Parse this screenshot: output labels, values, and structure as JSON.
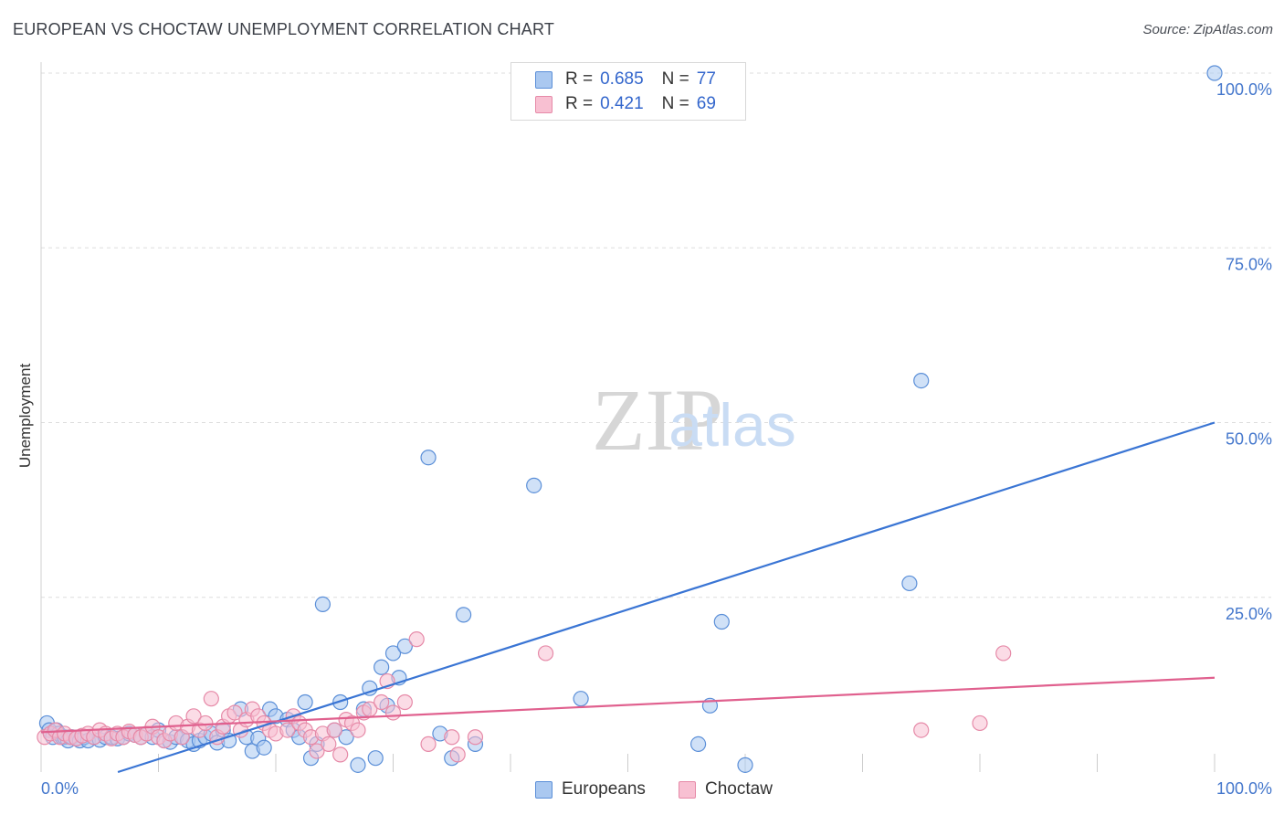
{
  "title": "EUROPEAN VS CHOCTAW UNEMPLOYMENT CORRELATION CHART",
  "source": "Source: ZipAtlas.com",
  "watermark": {
    "zip": "ZIP",
    "atlas": "atlas"
  },
  "legend": {
    "r_label": "R =",
    "n_label": "N =",
    "items": [
      {
        "name": "Europeans",
        "r": "0.685",
        "n": "77",
        "fill": "#aac8f0",
        "stroke": "#5b8fd8"
      },
      {
        "name": "Choctaw",
        "r": "0.421",
        "n": "69",
        "fill": "#f8c0d2",
        "stroke": "#e68aa8"
      }
    ]
  },
  "chart_data": {
    "type": "scatter",
    "title": "EUROPEAN VS CHOCTAW UNEMPLOYMENT CORRELATION CHART",
    "xlabel": "",
    "ylabel": "Unemployment",
    "xlim": [
      0,
      100
    ],
    "ylim": [
      0,
      100
    ],
    "x_ticks": [
      "0.0%",
      "100.0%"
    ],
    "y_ticks": [
      {
        "value": 25,
        "label": "25.0%"
      },
      {
        "value": 50,
        "label": "50.0%"
      },
      {
        "value": 75,
        "label": "75.0%"
      },
      {
        "value": 100,
        "label": "100.0%"
      }
    ],
    "series": [
      {
        "name": "Europeans",
        "color": "#3a75d4",
        "point_fill": "#aac8f0",
        "point_stroke": "#5b8fd8",
        "r": 0.685,
        "n": 77,
        "trend": {
          "x": [
            0,
            100
          ],
          "y": [
            -3.5,
            50
          ]
        },
        "points": [
          [
            0.5,
            7
          ],
          [
            0.7,
            6
          ],
          [
            1,
            5
          ],
          [
            1.3,
            6
          ],
          [
            1.5,
            5.5
          ],
          [
            1.8,
            5
          ],
          [
            2,
            5
          ],
          [
            2.3,
            4.5
          ],
          [
            2.6,
            5
          ],
          [
            3,
            4.8
          ],
          [
            3.3,
            4.5
          ],
          [
            3.7,
            5
          ],
          [
            4,
            4.5
          ],
          [
            4.5,
            5
          ],
          [
            5,
            4.6
          ],
          [
            5.5,
            5
          ],
          [
            6,
            5
          ],
          [
            6.5,
            4.8
          ],
          [
            7,
            5
          ],
          [
            7.5,
            5.5
          ],
          [
            8,
            5.3
          ],
          [
            8.5,
            5
          ],
          [
            9,
            5.5
          ],
          [
            9.5,
            5
          ],
          [
            10,
            6
          ],
          [
            10.5,
            4.5
          ],
          [
            11,
            4.3
          ],
          [
            11.5,
            5
          ],
          [
            12,
            5
          ],
          [
            12.5,
            4.5
          ],
          [
            13,
            4
          ],
          [
            13.5,
            4.5
          ],
          [
            14,
            5
          ],
          [
            14.5,
            5.5
          ],
          [
            15,
            4.2
          ],
          [
            15.5,
            6
          ],
          [
            16,
            4.5
          ],
          [
            17,
            9
          ],
          [
            17.5,
            5
          ],
          [
            18,
            3
          ],
          [
            18.5,
            4.8
          ],
          [
            19,
            3.5
          ],
          [
            19.5,
            9
          ],
          [
            20,
            8
          ],
          [
            21,
            7.5
          ],
          [
            21.5,
            6
          ],
          [
            22,
            5
          ],
          [
            22.5,
            10
          ],
          [
            23,
            2
          ],
          [
            23.5,
            4
          ],
          [
            24,
            24
          ],
          [
            25,
            6
          ],
          [
            25.5,
            10
          ],
          [
            26,
            5
          ],
          [
            27,
            1
          ],
          [
            27.5,
            9
          ],
          [
            28,
            12
          ],
          [
            28.5,
            2
          ],
          [
            29,
            15
          ],
          [
            29.5,
            9.5
          ],
          [
            30,
            17
          ],
          [
            30.5,
            13.5
          ],
          [
            31,
            18
          ],
          [
            33,
            45
          ],
          [
            34,
            5.5
          ],
          [
            35,
            2
          ],
          [
            36,
            22.5
          ],
          [
            37,
            4
          ],
          [
            42,
            41
          ],
          [
            46,
            10.5
          ],
          [
            56,
            4
          ],
          [
            57,
            9.5
          ],
          [
            58,
            21.5
          ],
          [
            60,
            1
          ],
          [
            74,
            27
          ],
          [
            75,
            56
          ],
          [
            100,
            100
          ]
        ]
      },
      {
        "name": "Choctaw",
        "color": "#e0608e",
        "point_fill": "#f8c0d2",
        "point_stroke": "#e68aa8",
        "r": 0.421,
        "n": 69,
        "trend": {
          "x": [
            0,
            100
          ],
          "y": [
            5.7,
            13.5
          ]
        },
        "points": [
          [
            0.3,
            5
          ],
          [
            0.8,
            5.5
          ],
          [
            1.2,
            6
          ],
          [
            1.6,
            5
          ],
          [
            2,
            5.5
          ],
          [
            2.5,
            5
          ],
          [
            3,
            4.8
          ],
          [
            3.5,
            5.2
          ],
          [
            4,
            5.5
          ],
          [
            4.5,
            5
          ],
          [
            5,
            6
          ],
          [
            5.5,
            5.5
          ],
          [
            6,
            4.8
          ],
          [
            6.5,
            5.5
          ],
          [
            7,
            5
          ],
          [
            7.5,
            5.8
          ],
          [
            8,
            5.3
          ],
          [
            8.5,
            5
          ],
          [
            9,
            5.5
          ],
          [
            9.5,
            6.5
          ],
          [
            10,
            5
          ],
          [
            10.5,
            4.5
          ],
          [
            11,
            5.5
          ],
          [
            11.5,
            7
          ],
          [
            12,
            5
          ],
          [
            12.5,
            6.5
          ],
          [
            13,
            8
          ],
          [
            13.5,
            6
          ],
          [
            14,
            7
          ],
          [
            14.5,
            10.5
          ],
          [
            15,
            5
          ],
          [
            15.5,
            6.5
          ],
          [
            16,
            8
          ],
          [
            16.5,
            8.5
          ],
          [
            17,
            6
          ],
          [
            17.5,
            7.5
          ],
          [
            18,
            9
          ],
          [
            18.5,
            8
          ],
          [
            19,
            7
          ],
          [
            19.5,
            6
          ],
          [
            20,
            5.5
          ],
          [
            21,
            6
          ],
          [
            21.5,
            8
          ],
          [
            22,
            7
          ],
          [
            22.5,
            6
          ],
          [
            23,
            5
          ],
          [
            23.5,
            3
          ],
          [
            24,
            5.5
          ],
          [
            24.5,
            4
          ],
          [
            25,
            6
          ],
          [
            25.5,
            2.5
          ],
          [
            26,
            7.5
          ],
          [
            26.5,
            7
          ],
          [
            27,
            6
          ],
          [
            27.5,
            8.5
          ],
          [
            28,
            9
          ],
          [
            29,
            10
          ],
          [
            29.5,
            13
          ],
          [
            30,
            8.5
          ],
          [
            31,
            10
          ],
          [
            32,
            19
          ],
          [
            33,
            4
          ],
          [
            35,
            5
          ],
          [
            35.5,
            2.5
          ],
          [
            37,
            5
          ],
          [
            43,
            17
          ],
          [
            75,
            6
          ],
          [
            80,
            7
          ],
          [
            82,
            17
          ]
        ]
      }
    ]
  }
}
